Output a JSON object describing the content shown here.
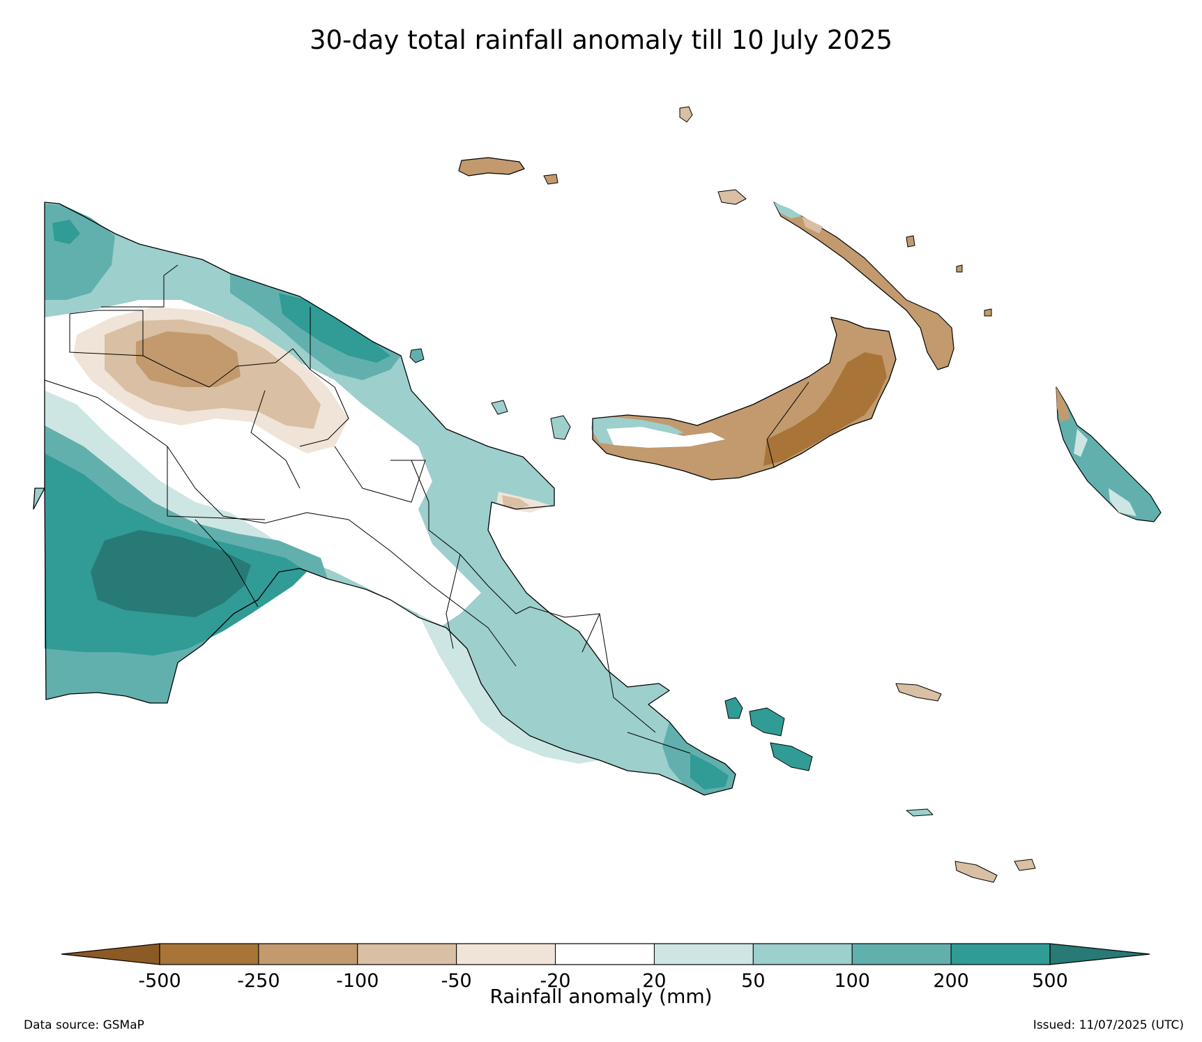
{
  "title": "30-day total rainfall anomaly till 10 July 2025",
  "colorbar": {
    "label": "Rainfall anomaly (mm)",
    "ticks": [
      "-500",
      "-250",
      "-100",
      "-50",
      "-20",
      "20",
      "50",
      "100",
      "200",
      "500"
    ],
    "bins": [
      {
        "range": "<-500",
        "color": "#8c5a25"
      },
      {
        "range": "-500 to -250",
        "color": "#a87437"
      },
      {
        "range": "-250 to -100",
        "color": "#c29a6e"
      },
      {
        "range": "-100 to -50",
        "color": "#d9bfa3"
      },
      {
        "range": "-50 to -20",
        "color": "#f0e4d8"
      },
      {
        "range": "-20 to 20",
        "color": "#ffffff"
      },
      {
        "range": "20 to 50",
        "color": "#cde6e4"
      },
      {
        "range": "50 to 100",
        "color": "#9dcfcc"
      },
      {
        "range": "100 to 200",
        "color": "#62b0ad"
      },
      {
        "range": "200 to 500",
        "color": "#319b96"
      },
      {
        "range": ">500",
        "color": "#277a76"
      }
    ]
  },
  "footer": {
    "data_source": "Data source: GSMaP",
    "issued": "Issued: 11/07/2025 (UTC)"
  }
}
